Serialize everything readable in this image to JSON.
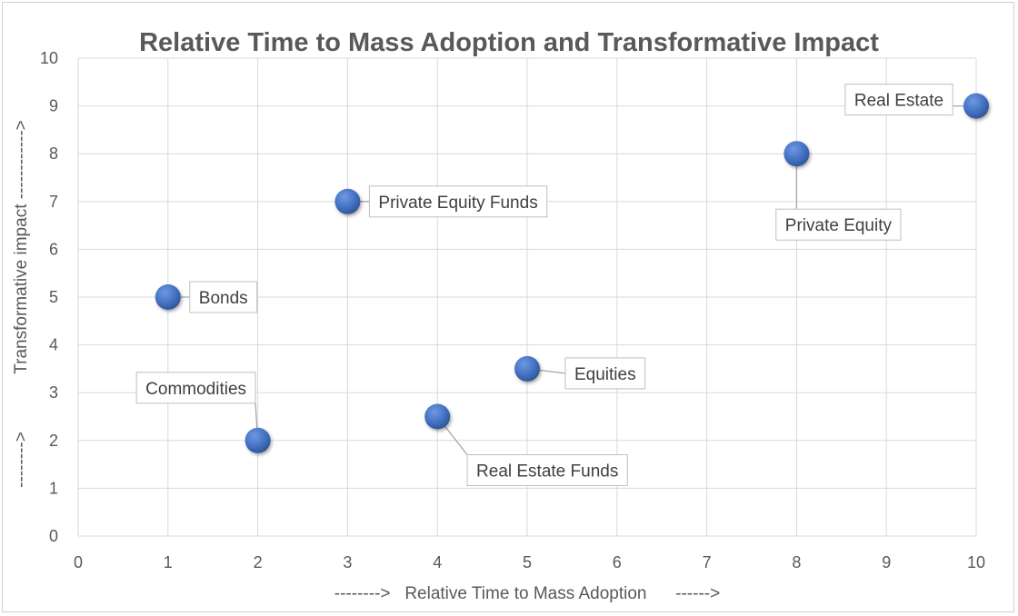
{
  "chart_data": {
    "type": "scatter",
    "title": "Relative Time to Mass Adoption and Transformative Impact",
    "xlabel": "-------->   Relative Time to Mass Adoption      ------>",
    "ylabel_main": "Transformative impact ------------>",
    "ylabel_secondary": "-------->",
    "xlim": [
      0,
      10
    ],
    "ylim": [
      0,
      10
    ],
    "x_ticks": [
      "0",
      "1",
      "2",
      "3",
      "4",
      "5",
      "6",
      "7",
      "8",
      "9",
      "10"
    ],
    "y_ticks": [
      "0",
      "1",
      "2",
      "3",
      "4",
      "5",
      "6",
      "7",
      "8",
      "9",
      "10"
    ],
    "grid": true,
    "marker_color": "#4472C4",
    "points": [
      {
        "label": "Bonds",
        "x": 1,
        "y": 5
      },
      {
        "label": "Commodities",
        "x": 2,
        "y": 2
      },
      {
        "label": "Private Equity Funds",
        "x": 3,
        "y": 7
      },
      {
        "label": "Real Estate Funds",
        "x": 4,
        "y": 2.5
      },
      {
        "label": "Equities",
        "x": 5,
        "y": 3.5
      },
      {
        "label": "Private Equity",
        "x": 8,
        "y": 8
      },
      {
        "label": "Real Estate",
        "x": 10,
        "y": 9
      }
    ]
  }
}
